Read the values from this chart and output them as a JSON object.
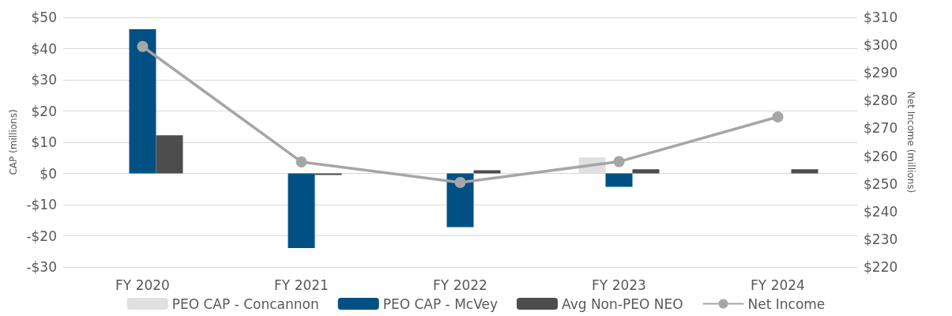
{
  "chart_data": {
    "type": "bar",
    "categories": [
      "FY 2020",
      "FY 2021",
      "FY 2022",
      "FY 2023",
      "FY 2024"
    ],
    "ylabel": "CAP (millions)",
    "y2label": "Net Income (millions)",
    "series": [
      {
        "name": "PEO CAP - Concannon",
        "color": "#e0e0e0",
        "values": [
          null,
          null,
          null,
          5.1,
          null
        ]
      },
      {
        "name": "PEO CAP - McVey",
        "color": "#005083",
        "values": [
          46.2,
          -23.9,
          -17.2,
          -4.3,
          null
        ]
      },
      {
        "name": "Avg Non-PEO NEO",
        "color": "#4d4d4d",
        "values": [
          12.2,
          -0.5,
          1.0,
          1.3,
          1.3
        ]
      },
      {
        "name": "Net Income",
        "type": "line",
        "axis": "y2",
        "color": "#a6a6a6",
        "marker": "circle",
        "values": [
          299.5,
          257.9,
          250.5,
          258.0,
          274.1
        ]
      }
    ],
    "ylim": [
      -30,
      50
    ],
    "yticks": [
      {
        "value": -30,
        "label": "-$30"
      },
      {
        "value": -20,
        "label": "-$20"
      },
      {
        "value": -10,
        "label": "-$10"
      },
      {
        "value": 0,
        "label": "$0"
      },
      {
        "value": 10,
        "label": "$10"
      },
      {
        "value": 20,
        "label": "$20"
      },
      {
        "value": 30,
        "label": "$30"
      },
      {
        "value": 40,
        "label": "$40"
      },
      {
        "value": 50,
        "label": "$50"
      }
    ],
    "y2lim": [
      220,
      310
    ],
    "y2ticks": [
      {
        "value": 220,
        "label": "$220"
      },
      {
        "value": 230,
        "label": "$230"
      },
      {
        "value": 240,
        "label": "$240"
      },
      {
        "value": 250,
        "label": "$250"
      },
      {
        "value": 260,
        "label": "$260"
      },
      {
        "value": 270,
        "label": "$270"
      },
      {
        "value": 280,
        "label": "$280"
      },
      {
        "value": 290,
        "label": "$290"
      },
      {
        "value": 300,
        "label": "$300"
      },
      {
        "value": 310,
        "label": "$310"
      }
    ],
    "grid": "y",
    "legend": "bottom"
  }
}
